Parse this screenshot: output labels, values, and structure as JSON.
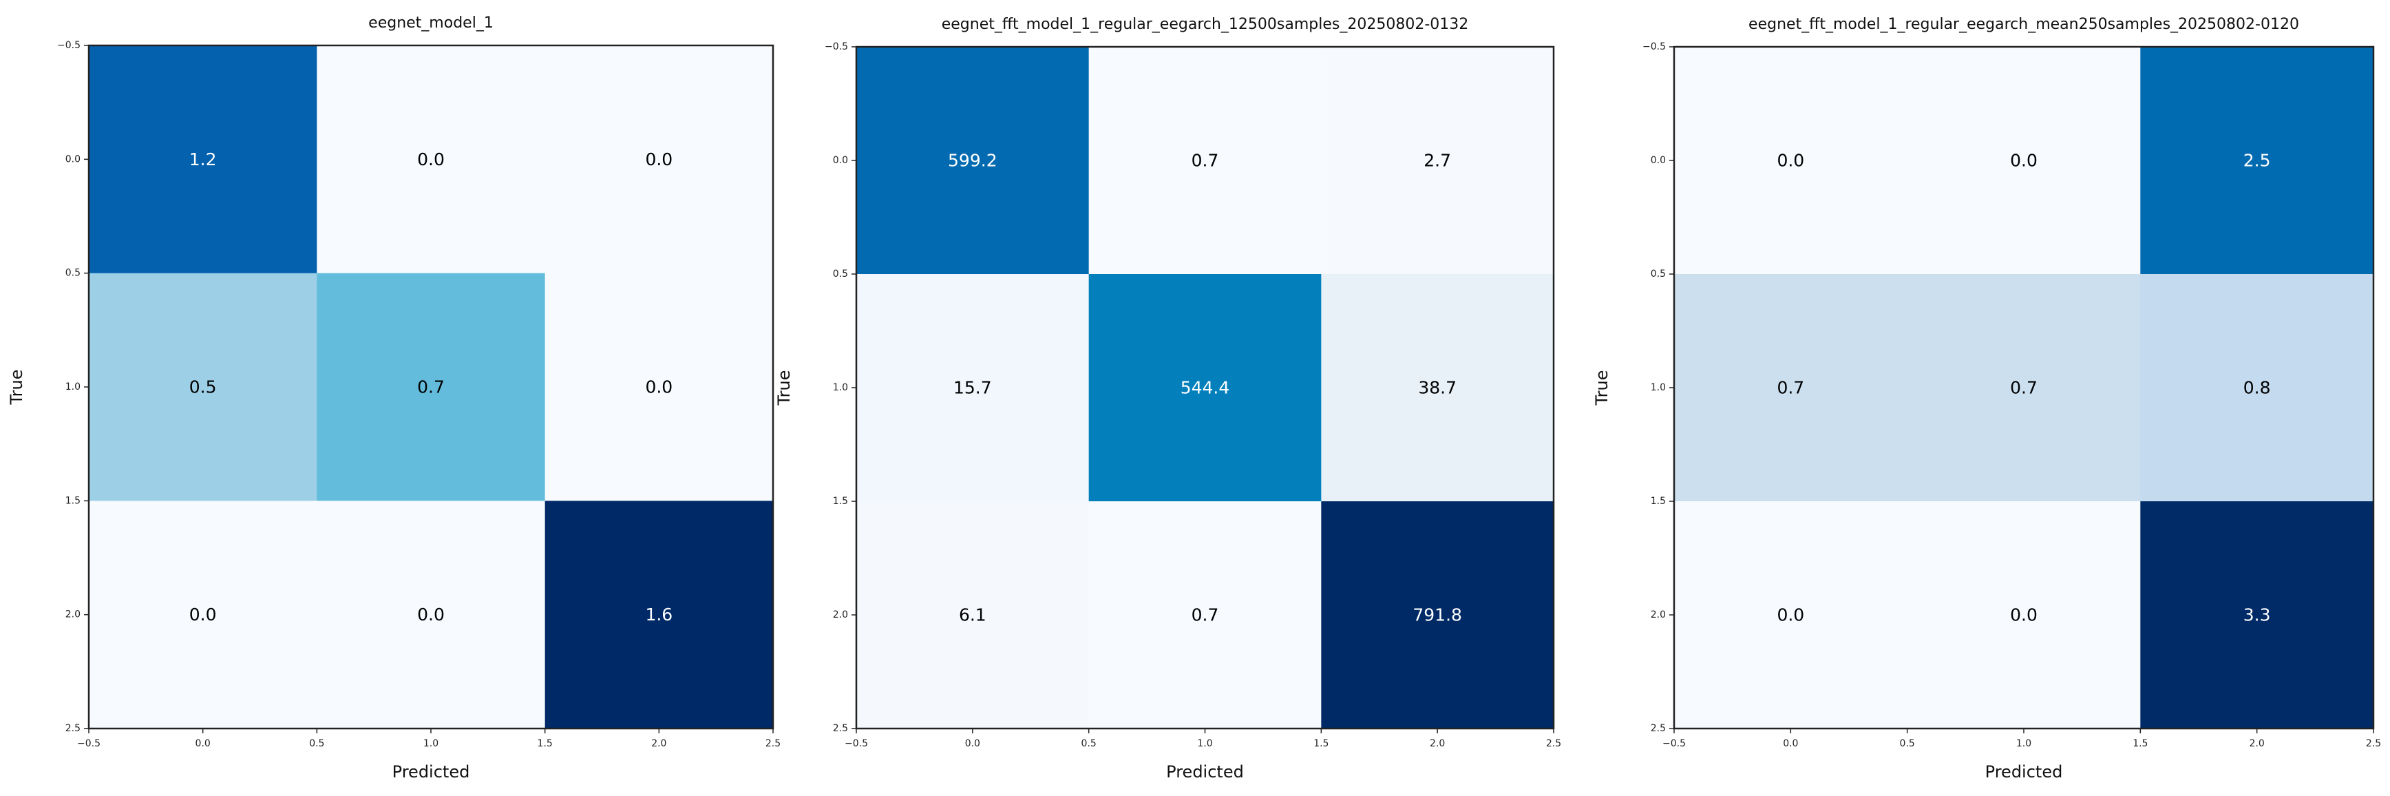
{
  "chart_data": [
    {
      "type": "heatmap",
      "title": "eegnet_model_1",
      "xlabel": "Predicted",
      "ylabel": "True",
      "xlim": [
        -0.5,
        2.5
      ],
      "ylim": [
        2.5,
        -0.5
      ],
      "xticks": [
        "−0.5",
        "0.0",
        "0.5",
        "1.0",
        "1.5",
        "2.0",
        "2.5"
      ],
      "yticks": [
        "−0.5",
        "0.0",
        "0.5",
        "1.0",
        "1.5",
        "2.0",
        "2.5"
      ],
      "colormap": "Blues",
      "values": [
        [
          1.2,
          0.0,
          0.0
        ],
        [
          0.5,
          0.7,
          0.0
        ],
        [
          0.0,
          0.0,
          1.6
        ]
      ],
      "labels": [
        [
          "1.2",
          "0.0",
          "0.0"
        ],
        [
          "0.5",
          "0.7",
          "0.0"
        ],
        [
          "0.0",
          "0.0",
          "1.6"
        ]
      ],
      "cell_colors": [
        [
          "#0361ae",
          "#f7fbff",
          "#f7fbff"
        ],
        [
          "#9dcfe7",
          "#64bcdd",
          "#f7fbff"
        ],
        [
          "#f7fbff",
          "#f7fbff",
          "#002967"
        ]
      ]
    },
    {
      "type": "heatmap",
      "title": "eegnet_fft_model_1_regular_eegarch_12500samples_20250802-0132",
      "xlabel": "Predicted",
      "ylabel": "True",
      "xlim": [
        -0.5,
        2.5
      ],
      "ylim": [
        2.5,
        -0.5
      ],
      "xticks": [
        "−0.5",
        "0.0",
        "0.5",
        "1.0",
        "1.5",
        "2.0",
        "2.5"
      ],
      "yticks": [
        "−0.5",
        "0.0",
        "0.5",
        "1.0",
        "1.5",
        "2.0",
        "2.5"
      ],
      "colormap": "Blues",
      "values": [
        [
          599.2,
          0.7,
          2.7
        ],
        [
          15.7,
          544.4,
          38.7
        ],
        [
          6.1,
          0.7,
          791.8
        ]
      ],
      "labels": [
        [
          "599.2",
          "0.7",
          "2.7"
        ],
        [
          "15.7",
          "544.4",
          "38.7"
        ],
        [
          "6.1",
          "0.7",
          "791.8"
        ]
      ],
      "cell_colors": [
        [
          "#016ab0",
          "#f7fbff",
          "#f6faff"
        ],
        [
          "#f1f7fd",
          "#0380bc",
          "#e8f1f8"
        ],
        [
          "#f5f9fe",
          "#f7fbff",
          "#002a65"
        ]
      ]
    },
    {
      "type": "heatmap",
      "title": "eegnet_fft_model_1_regular_eegarch_mean250samples_20250802-0120",
      "xlabel": "Predicted",
      "ylabel": "True",
      "xlim": [
        -0.5,
        2.5
      ],
      "ylim": [
        2.5,
        -0.5
      ],
      "xticks": [
        "−0.5",
        "0.0",
        "0.5",
        "1.0",
        "1.5",
        "2.0",
        "2.5"
      ],
      "yticks": [
        "−0.5",
        "0.0",
        "0.5",
        "1.0",
        "1.5",
        "2.0",
        "2.5"
      ],
      "colormap": "Blues",
      "values": [
        [
          0.0,
          0.0,
          2.5
        ],
        [
          0.7,
          0.7,
          0.8
        ],
        [
          0.0,
          0.0,
          3.3
        ]
      ],
      "labels": [
        [
          "0.0",
          "0.0",
          "2.5"
        ],
        [
          "0.7",
          "0.7",
          "0.8"
        ],
        [
          "0.0",
          "0.0",
          "3.3"
        ]
      ],
      "cell_colors": [
        [
          "#f7fbff",
          "#f7fbff",
          "#016bb1"
        ],
        [
          "#cbdfef",
          "#cbdfef",
          "#c4daee"
        ],
        [
          "#f7fbff",
          "#f7fbff",
          "#002b66"
        ]
      ]
    }
  ]
}
